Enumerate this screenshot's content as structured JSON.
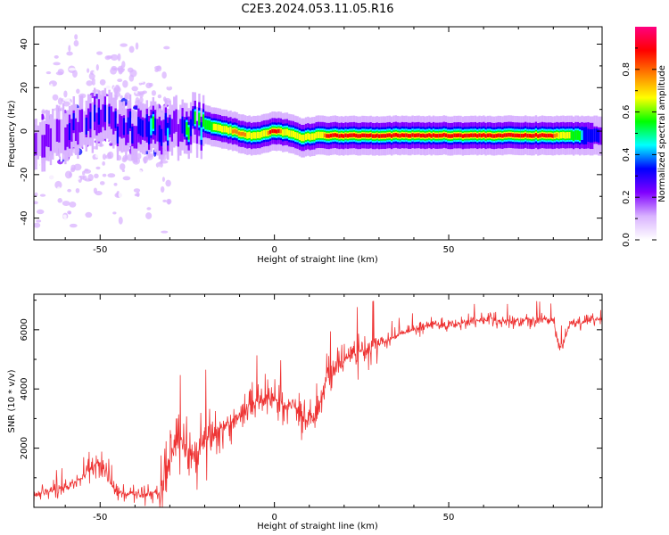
{
  "figure": {
    "title": "C2E3.2024.053.11.05.R16"
  },
  "chart_data": [
    {
      "type": "heatmap",
      "title": "C2E3.2024.053.11.05.R16",
      "xlabel": "Height of straight line (km)",
      "ylabel": "Frequency (Hz)",
      "xlim": [
        -69,
        94
      ],
      "ylim": [
        -50,
        48
      ],
      "xticks": [
        -50,
        0,
        50
      ],
      "yticks": [
        -40,
        -20,
        0,
        20,
        40
      ],
      "grid": false,
      "colorbar": {
        "label": "Normalized spectral amplitude",
        "range": [
          0.0,
          1.0
        ],
        "ticks": [
          0.0,
          0.2,
          0.4,
          0.6,
          0.8
        ],
        "tick_labels": [
          "0.0",
          "0.2",
          "0.4",
          "0.6",
          "0.8"
        ],
        "colormap": [
          "#ffffff",
          "#d9b3ff",
          "#8000ff",
          "#0000ff",
          "#00ffff",
          "#00ff00",
          "#ffff00",
          "#ff8000",
          "#ff0000",
          "#ff0080"
        ]
      },
      "ridge": {
        "x": [
          -69,
          -60,
          -55,
          -50,
          -45,
          -40,
          -35,
          -30,
          -25,
          -20,
          -15,
          -12,
          -8,
          -5,
          0,
          5,
          8,
          12,
          15,
          20,
          30,
          40,
          50,
          60,
          70,
          80,
          90,
          94
        ],
        "frequency": [
          -4,
          -2,
          3,
          6,
          2,
          1,
          0,
          1,
          2,
          3,
          1,
          0,
          -2,
          -2,
          0,
          -1,
          -3,
          -2,
          -2,
          -2,
          -2,
          -2,
          -2,
          -2,
          -2,
          -2,
          -2,
          -2
        ],
        "peak_amplitude": [
          0.3,
          0.35,
          0.4,
          0.4,
          0.35,
          0.45,
          0.5,
          0.5,
          0.55,
          0.6,
          0.8,
          0.85,
          0.85,
          0.7,
          0.95,
          0.7,
          0.8,
          0.75,
          0.9,
          0.95,
          0.95,
          0.95,
          0.95,
          0.95,
          0.95,
          0.9,
          0.5,
          0.4
        ]
      }
    },
    {
      "type": "line",
      "xlabel": "Height of straight line (km)",
      "ylabel": "SNR (10 * v/v)",
      "xlim": [
        -69,
        94
      ],
      "ylim": [
        0,
        7200
      ],
      "xticks": [
        -50,
        0,
        50
      ],
      "yticks": [
        2000,
        4000,
        6000
      ],
      "grid": false,
      "series": [
        {
          "color": "#ee3333",
          "x": [
            -69,
            -65,
            -60,
            -55,
            -52,
            -50,
            -48,
            -46,
            -44,
            -42,
            -40,
            -38,
            -35,
            -33,
            -32,
            -30,
            -28,
            -26,
            -24,
            -22,
            -20,
            -18,
            -15,
            -12,
            -10,
            -8,
            -5,
            -2,
            0,
            2,
            5,
            8,
            10,
            12,
            14,
            15,
            18,
            20,
            25,
            30,
            35,
            40,
            45,
            50,
            55,
            60,
            65,
            70,
            75,
            80,
            82,
            85,
            88,
            90,
            94
          ],
          "y": [
            400,
            500,
            700,
            1000,
            1400,
            1500,
            1100,
            600,
            500,
            450,
            500,
            450,
            500,
            450,
            800,
            1800,
            2100,
            2000,
            1800,
            1900,
            2200,
            2400,
            2700,
            2900,
            3100,
            3300,
            3600,
            3700,
            3700,
            3400,
            3500,
            3100,
            2900,
            3300,
            3900,
            4300,
            4600,
            5000,
            5300,
            5500,
            5800,
            6000,
            6200,
            6100,
            6300,
            6300,
            6300,
            6300,
            6400,
            6300,
            5400,
            6300,
            6200,
            6300,
            6400
          ]
        }
      ]
    }
  ]
}
